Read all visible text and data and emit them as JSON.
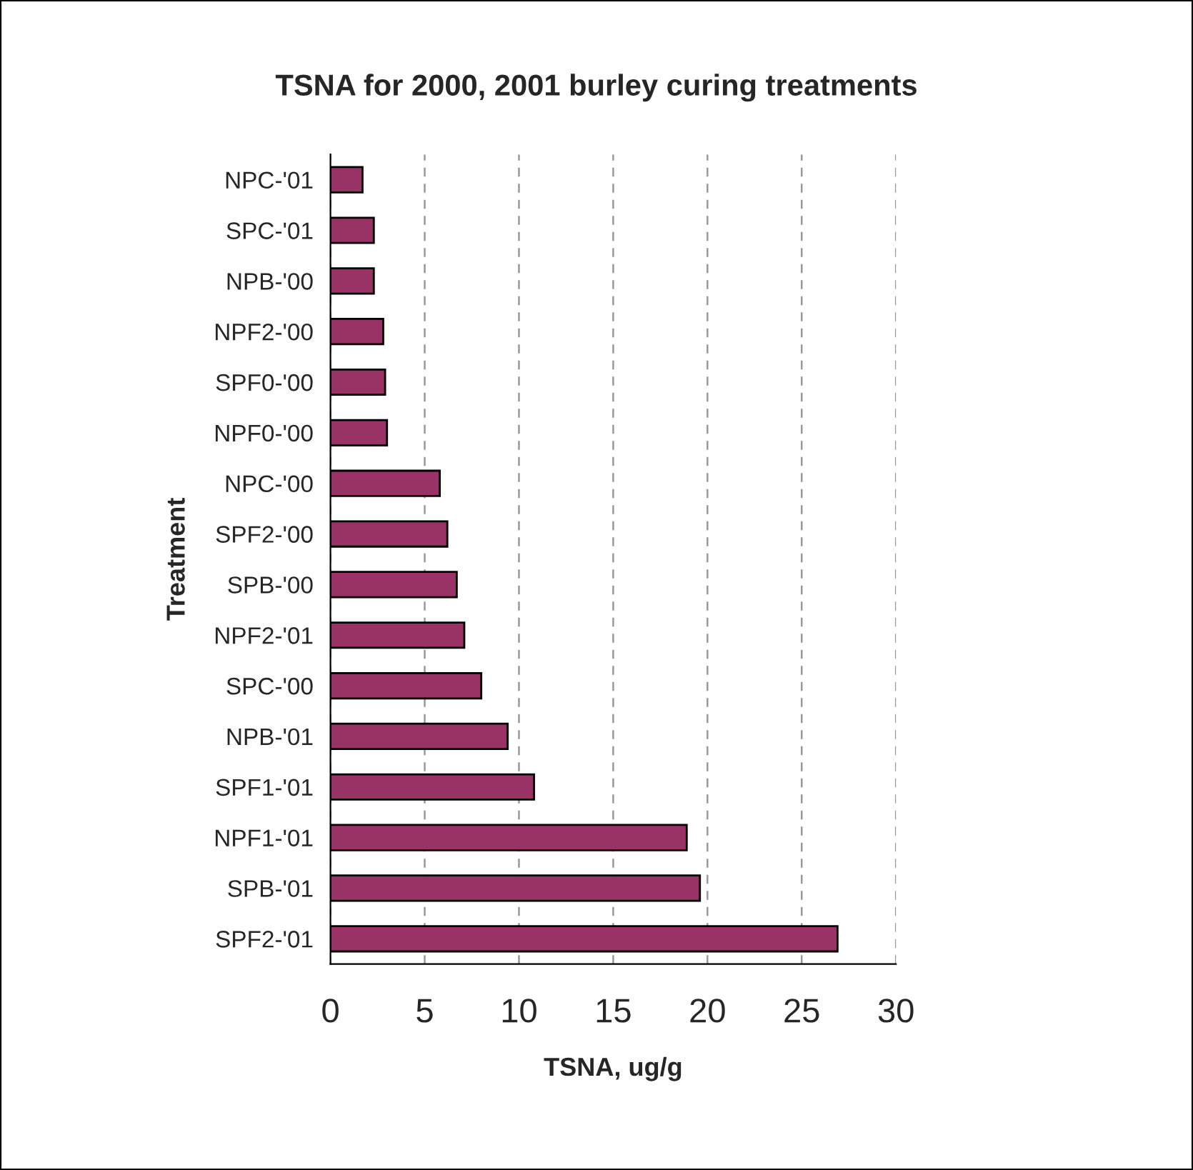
{
  "chart_data": {
    "type": "bar",
    "orientation": "horizontal",
    "title": "TSNA for 2000, 2001 burley curing treatments",
    "xlabel": "TSNA, ug/g",
    "ylabel": "Treatment",
    "categories": [
      "NPC-'01",
      "SPC-'01",
      "NPB-'00",
      "NPF2-'00",
      "SPF0-'00",
      "NPF0-'00",
      "NPC-'00",
      "SPF2-'00",
      "SPB-'00",
      "NPF2-'01",
      "SPC-'00",
      "NPB-'01",
      "SPF1-'01",
      "NPF1-'01",
      "SPB-'01",
      "SPF2-'01"
    ],
    "values": [
      1.7,
      2.3,
      2.3,
      2.8,
      2.9,
      3.0,
      5.8,
      6.2,
      6.7,
      7.1,
      8.0,
      9.4,
      10.8,
      18.9,
      19.6,
      26.9
    ],
    "color": "#993366",
    "xlim": [
      0,
      30
    ],
    "xticks": [
      0,
      5,
      10,
      15,
      20,
      25,
      30
    ],
    "grid": "x",
    "legend": false
  }
}
